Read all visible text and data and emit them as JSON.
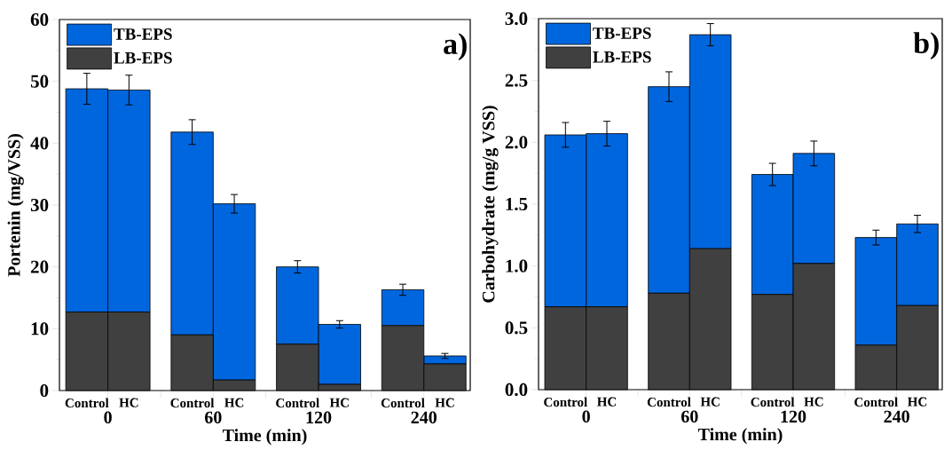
{
  "chart_data": [
    {
      "type": "bar",
      "stacked": true,
      "categories": [
        "Control",
        "HC",
        "Control",
        "HC",
        "Control",
        "HC",
        "Control",
        "HC"
      ],
      "series": [
        {
          "name": "LB-EPS",
          "color": "#404040",
          "values": [
            12.7,
            12.7,
            9.0,
            1.7,
            7.5,
            1.0,
            10.5,
            4.3
          ]
        },
        {
          "name": "TB-EPS",
          "color": "#0066dd",
          "values": [
            36.1,
            35.9,
            32.8,
            28.5,
            12.5,
            9.7,
            5.8,
            1.3
          ],
          "errors": [
            2.5,
            2.4,
            2.0,
            1.5,
            1.0,
            0.6,
            0.9,
            0.4
          ]
        }
      ],
      "xlabel": "Time (min)",
      "ylabel": "Portenin (mg/VSS)",
      "ylim": [
        0,
        60
      ],
      "yticks": [
        0,
        10,
        20,
        30,
        40,
        50,
        60
      ],
      "legend": "top left",
      "annotations": [
        "0",
        "60",
        "120",
        "240",
        "a)"
      ]
    },
    {
      "type": "bar",
      "stacked": true,
      "categories": [
        "Control",
        "HC",
        "Control",
        "HC",
        "Control",
        "HC",
        "Control",
        "HC"
      ],
      "series": [
        {
          "name": "LB-EPS",
          "color": "#404040",
          "values": [
            0.67,
            0.67,
            0.78,
            1.14,
            0.77,
            1.02,
            0.36,
            0.68
          ]
        },
        {
          "name": "TB-EPS",
          "color": "#0066dd",
          "values": [
            1.39,
            1.4,
            1.67,
            1.73,
            0.97,
            0.89,
            0.87,
            0.66
          ],
          "errors": [
            0.1,
            0.1,
            0.12,
            0.09,
            0.09,
            0.1,
            0.06,
            0.07
          ]
        }
      ],
      "xlabel": "Time (min)",
      "ylabel": "Carbohydrate (mg/g VSS)",
      "ylim": [
        0,
        3.0
      ],
      "yticks": [
        {
          "value": 0,
          "label": "0.0"
        },
        {
          "value": 0.5,
          "label": "0.5"
        },
        {
          "value": 1.0,
          "label": "1.0"
        },
        {
          "value": 1.5,
          "label": "1.5"
        },
        {
          "value": 2.0,
          "label": "2.0"
        },
        {
          "value": 2.5,
          "label": "2.5"
        },
        {
          "value": 3.0,
          "label": "3.0"
        }
      ],
      "legend": "top left",
      "annotations": [
        "0",
        "60",
        "120",
        "240",
        "b)"
      ]
    }
  ]
}
